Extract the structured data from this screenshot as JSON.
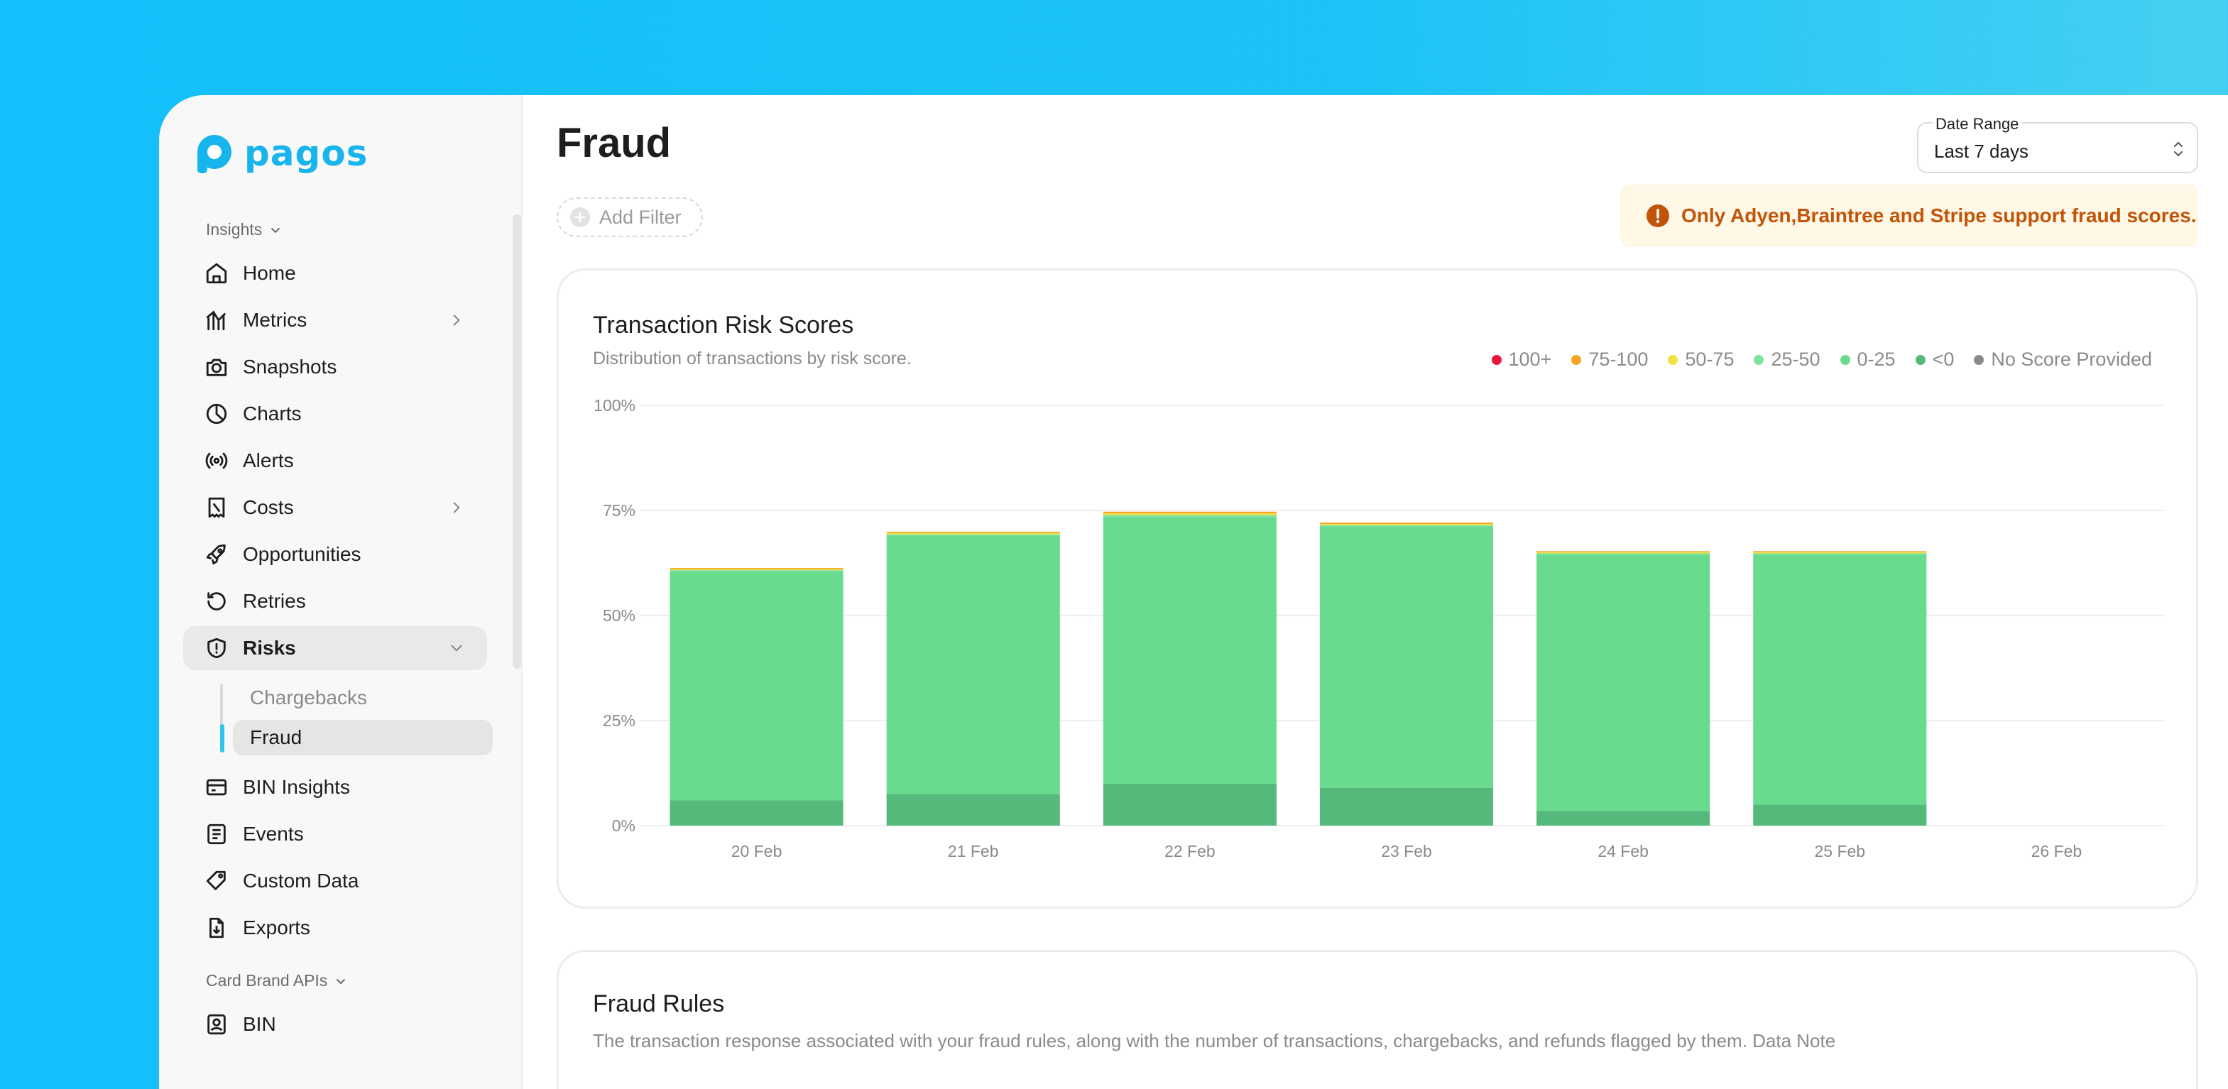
{
  "brand": {
    "name": "pagos",
    "color": "#18b4ec"
  },
  "sidebar": {
    "sections": [
      {
        "label": "Insights"
      },
      {
        "label": "Card Brand APIs"
      }
    ],
    "items": [
      {
        "label": "Home",
        "icon": "home-icon"
      },
      {
        "label": "Metrics",
        "icon": "metrics-icon"
      },
      {
        "label": "Snapshots",
        "icon": "camera-icon"
      },
      {
        "label": "Charts",
        "icon": "pie-chart-icon"
      },
      {
        "label": "Alerts",
        "icon": "broadcast-icon"
      },
      {
        "label": "Costs",
        "icon": "receipt-icon"
      },
      {
        "label": "Opportunities",
        "icon": "rocket-icon"
      },
      {
        "label": "Retries",
        "icon": "retry-icon"
      },
      {
        "label": "Risks",
        "icon": "shield-icon"
      },
      {
        "label": "BIN Insights",
        "icon": "card-icon"
      },
      {
        "label": "Events",
        "icon": "list-icon"
      },
      {
        "label": "Custom Data",
        "icon": "tag-icon"
      },
      {
        "label": "Exports",
        "icon": "export-icon"
      },
      {
        "label": "BIN",
        "icon": "id-card-icon"
      }
    ],
    "risks_children": [
      {
        "label": "Chargebacks"
      },
      {
        "label": "Fraud"
      }
    ]
  },
  "header": {
    "title": "Fraud",
    "date_range": {
      "label": "Date Range",
      "value": "Last 7 days"
    },
    "add_filter_label": "Add Filter",
    "notice": "Only Adyen,Braintree and Stripe support fraud scores."
  },
  "risk_card": {
    "title": "Transaction Risk Scores",
    "subtitle": "Distribution of transactions by risk score."
  },
  "rules_card": {
    "title": "Fraud Rules",
    "subtitle": "The transaction response associated with your fraud rules, along with the number of transactions, chargebacks, and refunds flagged by them. Data Note"
  },
  "colors": {
    "accent": "#18b4ec",
    "notice_text": "#c2540a",
    "notice_bg": "#fff8e6"
  },
  "chart_data": {
    "type": "bar",
    "stacked": true,
    "categories": [
      "20 Feb",
      "21 Feb",
      "22 Feb",
      "23 Feb",
      "24 Feb",
      "25 Feb",
      "26 Feb"
    ],
    "y_ticks": [
      "0%",
      "25%",
      "50%",
      "75%",
      "100%"
    ],
    "ylim": [
      0,
      100
    ],
    "grid": true,
    "legend_position": "top-right",
    "series": [
      {
        "name": "<0",
        "color": "#55b97c",
        "values": [
          6,
          7.5,
          10,
          9,
          3.5,
          5,
          0
        ]
      },
      {
        "name": "0-25",
        "color": "#68db8f",
        "values": [
          54.5,
          61.5,
          63.5,
          62.2,
          61,
          59.5,
          0
        ]
      },
      {
        "name": "25-50",
        "color": "#7fe2a0",
        "values": [
          0.3,
          0.3,
          0.4,
          0.3,
          0.3,
          0.3,
          0
        ]
      },
      {
        "name": "50-75",
        "color": "#f3e142",
        "values": [
          0.3,
          0.3,
          0.4,
          0.3,
          0.3,
          0.3,
          0
        ]
      },
      {
        "name": "75-100",
        "color": "#f5a623",
        "values": [
          0.2,
          0.3,
          0.4,
          0.3,
          0.2,
          0.2,
          0
        ]
      },
      {
        "name": "100+",
        "color": "#e8163c",
        "values": [
          0,
          0,
          0,
          0,
          0,
          0,
          0
        ]
      },
      {
        "name": "No Score Provided",
        "color": "#8a8a8a",
        "values": [
          0,
          0,
          0,
          0,
          0,
          0,
          0
        ]
      }
    ],
    "legend_order": [
      "100+",
      "75-100",
      "50-75",
      "25-50",
      "0-25",
      "<0",
      "No Score Provided"
    ]
  }
}
